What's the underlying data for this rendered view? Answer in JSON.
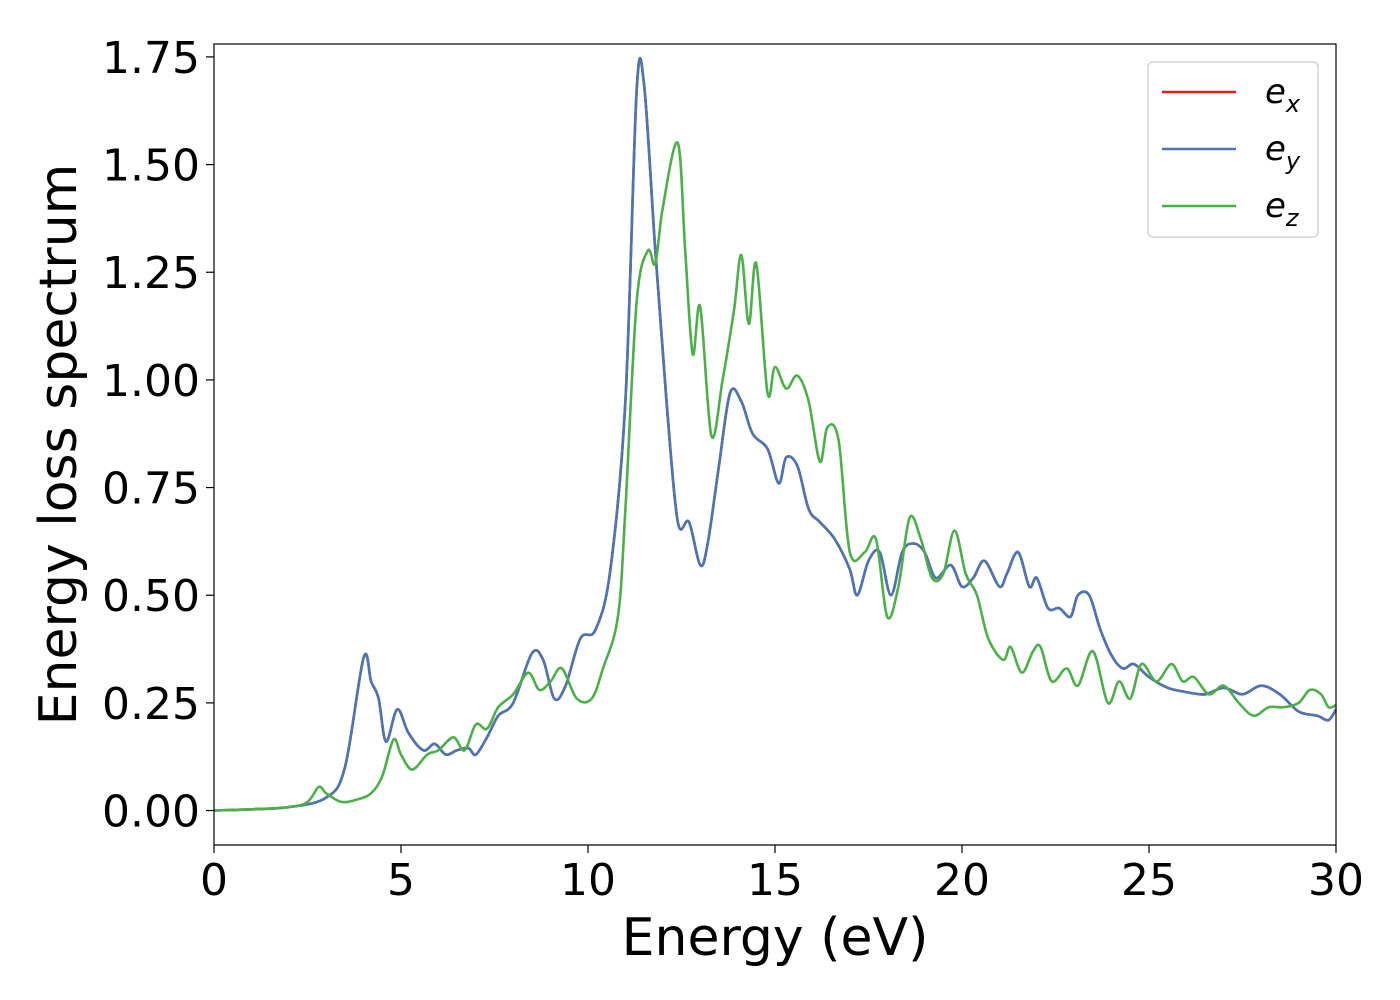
{
  "chart_data": {
    "type": "line",
    "xlabel": "Energy (eV)",
    "ylabel": "Energy loss spectrum",
    "xlim": [
      0,
      30
    ],
    "ylim": [
      -0.08,
      1.78
    ],
    "x_ticks": [
      "0",
      "5",
      "10",
      "15",
      "20",
      "25",
      "30"
    ],
    "y_ticks": [
      "0.00",
      "0.25",
      "0.50",
      "0.75",
      "1.00",
      "1.25",
      "1.50",
      "1.75"
    ],
    "grid": false,
    "legend_position": "top-right",
    "series": [
      {
        "name": "e_x",
        "label_base": "e",
        "label_sub": "x",
        "color": "#e41a1c",
        "points": [
          [
            0,
            0
          ],
          [
            1,
            0.003
          ],
          [
            2,
            0.008
          ],
          [
            3,
            0.03
          ],
          [
            3.5,
            0.1
          ],
          [
            4,
            0.355
          ],
          [
            4.2,
            0.3
          ],
          [
            4.4,
            0.26
          ],
          [
            4.6,
            0.16
          ],
          [
            4.9,
            0.235
          ],
          [
            5.2,
            0.18
          ],
          [
            5.6,
            0.14
          ],
          [
            5.9,
            0.155
          ],
          [
            6.2,
            0.13
          ],
          [
            6.5,
            0.14
          ],
          [
            6.8,
            0.145
          ],
          [
            7.0,
            0.13
          ],
          [
            7.3,
            0.17
          ],
          [
            7.6,
            0.22
          ],
          [
            8.0,
            0.25
          ],
          [
            8.5,
            0.365
          ],
          [
            8.8,
            0.35
          ],
          [
            9.1,
            0.26
          ],
          [
            9.4,
            0.29
          ],
          [
            9.8,
            0.4
          ],
          [
            10.2,
            0.42
          ],
          [
            10.6,
            0.56
          ],
          [
            11.0,
            0.95
          ],
          [
            11.3,
            1.67
          ],
          [
            11.5,
            1.685
          ],
          [
            11.8,
            1.3
          ],
          [
            12.1,
            0.95
          ],
          [
            12.4,
            0.67
          ],
          [
            12.7,
            0.67
          ],
          [
            13.0,
            0.57
          ],
          [
            13.2,
            0.62
          ],
          [
            13.5,
            0.8
          ],
          [
            13.8,
            0.97
          ],
          [
            14.1,
            0.95
          ],
          [
            14.4,
            0.875
          ],
          [
            14.8,
            0.84
          ],
          [
            15.1,
            0.76
          ],
          [
            15.3,
            0.82
          ],
          [
            15.6,
            0.8
          ],
          [
            15.9,
            0.7
          ],
          [
            16.2,
            0.67
          ],
          [
            16.6,
            0.63
          ],
          [
            17.0,
            0.56
          ],
          [
            17.2,
            0.5
          ],
          [
            17.5,
            0.58
          ],
          [
            17.8,
            0.6
          ],
          [
            18.1,
            0.5
          ],
          [
            18.4,
            0.6
          ],
          [
            18.7,
            0.62
          ],
          [
            19.0,
            0.6
          ],
          [
            19.3,
            0.54
          ],
          [
            19.7,
            0.57
          ],
          [
            20.0,
            0.52
          ],
          [
            20.3,
            0.54
          ],
          [
            20.6,
            0.58
          ],
          [
            21.0,
            0.52
          ],
          [
            21.2,
            0.55
          ],
          [
            21.5,
            0.6
          ],
          [
            21.8,
            0.52
          ],
          [
            22.0,
            0.54
          ],
          [
            22.3,
            0.47
          ],
          [
            22.6,
            0.47
          ],
          [
            22.9,
            0.45
          ],
          [
            23.1,
            0.5
          ],
          [
            23.4,
            0.5
          ],
          [
            23.7,
            0.42
          ],
          [
            24.0,
            0.36
          ],
          [
            24.3,
            0.33
          ],
          [
            24.6,
            0.34
          ],
          [
            25.0,
            0.31
          ],
          [
            25.5,
            0.285
          ],
          [
            26.0,
            0.275
          ],
          [
            26.5,
            0.27
          ],
          [
            27.0,
            0.285
          ],
          [
            27.5,
            0.27
          ],
          [
            28.0,
            0.29
          ],
          [
            28.5,
            0.27
          ],
          [
            29.0,
            0.23
          ],
          [
            29.5,
            0.22
          ],
          [
            29.8,
            0.21
          ],
          [
            30,
            0.235
          ]
        ]
      },
      {
        "name": "e_y",
        "label_base": "e",
        "label_sub": "y",
        "color": "#4a77b4",
        "points": [
          [
            0,
            0
          ],
          [
            1,
            0.003
          ],
          [
            2,
            0.008
          ],
          [
            3,
            0.03
          ],
          [
            3.5,
            0.1
          ],
          [
            4,
            0.355
          ],
          [
            4.2,
            0.3
          ],
          [
            4.4,
            0.26
          ],
          [
            4.6,
            0.16
          ],
          [
            4.9,
            0.235
          ],
          [
            5.2,
            0.18
          ],
          [
            5.6,
            0.14
          ],
          [
            5.9,
            0.155
          ],
          [
            6.2,
            0.13
          ],
          [
            6.5,
            0.14
          ],
          [
            6.8,
            0.145
          ],
          [
            7.0,
            0.13
          ],
          [
            7.3,
            0.17
          ],
          [
            7.6,
            0.22
          ],
          [
            8.0,
            0.25
          ],
          [
            8.5,
            0.365
          ],
          [
            8.8,
            0.35
          ],
          [
            9.1,
            0.26
          ],
          [
            9.4,
            0.29
          ],
          [
            9.8,
            0.4
          ],
          [
            10.2,
            0.42
          ],
          [
            10.6,
            0.56
          ],
          [
            11.0,
            0.95
          ],
          [
            11.3,
            1.67
          ],
          [
            11.5,
            1.685
          ],
          [
            11.8,
            1.3
          ],
          [
            12.1,
            0.95
          ],
          [
            12.4,
            0.67
          ],
          [
            12.7,
            0.67
          ],
          [
            13.0,
            0.57
          ],
          [
            13.2,
            0.62
          ],
          [
            13.5,
            0.8
          ],
          [
            13.8,
            0.97
          ],
          [
            14.1,
            0.95
          ],
          [
            14.4,
            0.875
          ],
          [
            14.8,
            0.84
          ],
          [
            15.1,
            0.76
          ],
          [
            15.3,
            0.82
          ],
          [
            15.6,
            0.8
          ],
          [
            15.9,
            0.7
          ],
          [
            16.2,
            0.67
          ],
          [
            16.6,
            0.63
          ],
          [
            17.0,
            0.56
          ],
          [
            17.2,
            0.5
          ],
          [
            17.5,
            0.58
          ],
          [
            17.8,
            0.6
          ],
          [
            18.1,
            0.5
          ],
          [
            18.4,
            0.6
          ],
          [
            18.7,
            0.62
          ],
          [
            19.0,
            0.6
          ],
          [
            19.3,
            0.54
          ],
          [
            19.7,
            0.57
          ],
          [
            20.0,
            0.52
          ],
          [
            20.3,
            0.54
          ],
          [
            20.6,
            0.58
          ],
          [
            21.0,
            0.52
          ],
          [
            21.2,
            0.55
          ],
          [
            21.5,
            0.6
          ],
          [
            21.8,
            0.52
          ],
          [
            22.0,
            0.54
          ],
          [
            22.3,
            0.47
          ],
          [
            22.6,
            0.47
          ],
          [
            22.9,
            0.45
          ],
          [
            23.1,
            0.5
          ],
          [
            23.4,
            0.5
          ],
          [
            23.7,
            0.42
          ],
          [
            24.0,
            0.36
          ],
          [
            24.3,
            0.33
          ],
          [
            24.6,
            0.34
          ],
          [
            25.0,
            0.31
          ],
          [
            25.5,
            0.285
          ],
          [
            26.0,
            0.275
          ],
          [
            26.5,
            0.27
          ],
          [
            27.0,
            0.285
          ],
          [
            27.5,
            0.27
          ],
          [
            28.0,
            0.29
          ],
          [
            28.5,
            0.27
          ],
          [
            29.0,
            0.23
          ],
          [
            29.5,
            0.22
          ],
          [
            29.8,
            0.21
          ],
          [
            30,
            0.235
          ]
        ]
      },
      {
        "name": "e_z",
        "label_base": "e",
        "label_sub": "z",
        "color": "#4daf4a",
        "points": [
          [
            0,
            0
          ],
          [
            1,
            0.003
          ],
          [
            2,
            0.008
          ],
          [
            2.5,
            0.02
          ],
          [
            2.8,
            0.055
          ],
          [
            3.0,
            0.04
          ],
          [
            3.4,
            0.02
          ],
          [
            3.8,
            0.025
          ],
          [
            4.2,
            0.04
          ],
          [
            4.5,
            0.08
          ],
          [
            4.8,
            0.165
          ],
          [
            5.0,
            0.13
          ],
          [
            5.3,
            0.095
          ],
          [
            5.7,
            0.13
          ],
          [
            6.0,
            0.14
          ],
          [
            6.4,
            0.17
          ],
          [
            6.7,
            0.14
          ],
          [
            7.0,
            0.2
          ],
          [
            7.3,
            0.19
          ],
          [
            7.6,
            0.24
          ],
          [
            8.0,
            0.27
          ],
          [
            8.4,
            0.32
          ],
          [
            8.7,
            0.28
          ],
          [
            9.0,
            0.3
          ],
          [
            9.3,
            0.33
          ],
          [
            9.7,
            0.26
          ],
          [
            10.1,
            0.26
          ],
          [
            10.4,
            0.33
          ],
          [
            10.8,
            0.45
          ],
          [
            11.0,
            0.7
          ],
          [
            11.3,
            1.18
          ],
          [
            11.6,
            1.3
          ],
          [
            11.8,
            1.27
          ],
          [
            12.0,
            1.4
          ],
          [
            12.4,
            1.55
          ],
          [
            12.6,
            1.3
          ],
          [
            12.8,
            1.06
          ],
          [
            13.0,
            1.17
          ],
          [
            13.3,
            0.87
          ],
          [
            13.6,
            1.0
          ],
          [
            13.9,
            1.16
          ],
          [
            14.1,
            1.29
          ],
          [
            14.3,
            1.13
          ],
          [
            14.5,
            1.27
          ],
          [
            14.8,
            0.97
          ],
          [
            15.0,
            1.03
          ],
          [
            15.3,
            0.98
          ],
          [
            15.6,
            1.01
          ],
          [
            15.9,
            0.95
          ],
          [
            16.2,
            0.81
          ],
          [
            16.4,
            0.89
          ],
          [
            16.7,
            0.86
          ],
          [
            17.0,
            0.6
          ],
          [
            17.4,
            0.6
          ],
          [
            17.7,
            0.63
          ],
          [
            18.0,
            0.45
          ],
          [
            18.3,
            0.52
          ],
          [
            18.6,
            0.68
          ],
          [
            18.9,
            0.63
          ],
          [
            19.2,
            0.54
          ],
          [
            19.5,
            0.55
          ],
          [
            19.8,
            0.65
          ],
          [
            20.1,
            0.55
          ],
          [
            20.4,
            0.5
          ],
          [
            20.7,
            0.4
          ],
          [
            21.1,
            0.35
          ],
          [
            21.3,
            0.38
          ],
          [
            21.6,
            0.32
          ],
          [
            21.9,
            0.37
          ],
          [
            22.1,
            0.38
          ],
          [
            22.4,
            0.3
          ],
          [
            22.8,
            0.33
          ],
          [
            23.1,
            0.29
          ],
          [
            23.5,
            0.37
          ],
          [
            23.9,
            0.25
          ],
          [
            24.2,
            0.3
          ],
          [
            24.5,
            0.26
          ],
          [
            24.8,
            0.34
          ],
          [
            25.2,
            0.3
          ],
          [
            25.6,
            0.34
          ],
          [
            25.9,
            0.3
          ],
          [
            26.2,
            0.31
          ],
          [
            26.6,
            0.27
          ],
          [
            27.0,
            0.29
          ],
          [
            27.4,
            0.25
          ],
          [
            27.8,
            0.22
          ],
          [
            28.2,
            0.24
          ],
          [
            28.6,
            0.24
          ],
          [
            29.0,
            0.25
          ],
          [
            29.3,
            0.28
          ],
          [
            29.6,
            0.27
          ],
          [
            29.8,
            0.24
          ],
          [
            30,
            0.245
          ]
        ]
      }
    ]
  }
}
